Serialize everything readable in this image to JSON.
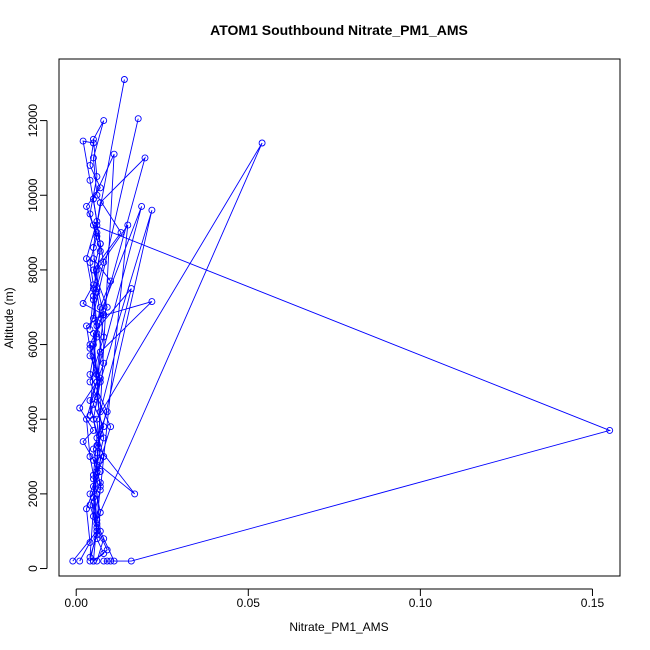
{
  "chart_data": {
    "type": "line",
    "title": "ATOM1 Southbound Nitrate_PM1_AMS",
    "xlabel": "Nitrate_PM1_AMS",
    "ylabel": "Altitude (m)",
    "xlim": [
      -0.005,
      0.158
    ],
    "ylim": [
      -200,
      13650
    ],
    "x_ticks": [
      0.0,
      0.05,
      0.1,
      0.15
    ],
    "x_tick_labels": [
      "0.00",
      "0.05",
      "0.10",
      "0.15"
    ],
    "y_ticks": [
      0,
      2000,
      4000,
      6000,
      8000,
      10000,
      12000
    ],
    "y_tick_labels": [
      "0",
      "2000",
      "4000",
      "6000",
      "8000",
      "10000",
      "12000"
    ],
    "marker": "open-circle",
    "series_color": "#0000ff",
    "series": [
      {
        "x": [
          -0.001,
          0.006,
          0.004,
          0.008,
          0.005,
          0.007,
          0.004,
          0.009,
          0.005,
          0.013,
          0.006,
          0.005,
          0.008,
          0.005,
          0.006,
          0.004,
          0.007,
          0.005,
          0.006,
          0.008,
          0.004,
          0.006,
          0.005,
          0.007,
          0.006,
          0.008,
          0.005,
          0.006,
          0.007,
          0.005,
          0.009,
          0.004,
          0.006,
          0.005,
          0.008,
          0.006,
          0.014
        ],
        "y": [
          200,
          1000,
          2000,
          3000,
          4000,
          5000,
          6000,
          7000,
          8000,
          9000,
          10000,
          11000,
          12000,
          11500,
          10500,
          9500,
          8500,
          7500,
          6500,
          5500,
          4500,
          3500,
          2500,
          1500,
          800,
          400,
          200,
          1200,
          2200,
          3200,
          4200,
          5200,
          6200,
          7200,
          8200,
          9200,
          13100
        ]
      },
      {
        "x": [
          0.001,
          0.004,
          0.003,
          0.007,
          0.002,
          0.005,
          0.001,
          0.006,
          0.004,
          0.003,
          0.008,
          0.002,
          0.005,
          0.004,
          0.006,
          0.003,
          0.007,
          0.004,
          0.005,
          0.002,
          0.004,
          0.006,
          0.003,
          0.005,
          0.004,
          0.018
        ],
        "y": [
          200,
          700,
          1600,
          2600,
          3400,
          3700,
          4300,
          5000,
          5900,
          6500,
          6800,
          7100,
          7600,
          8200,
          8900,
          9700,
          10200,
          10800,
          11400,
          11450,
          10400,
          9300,
          8300,
          7300,
          6400,
          12050
        ]
      },
      {
        "x": [
          0.005,
          0.009,
          0.006,
          0.004,
          0.007,
          0.005,
          0.017,
          0.006,
          0.008,
          0.005,
          0.007,
          0.004,
          0.006,
          0.02,
          0.007,
          0.005,
          0.006,
          0.008,
          0.004,
          0.01,
          0.006,
          0.011,
          0.005,
          0.007,
          0.006
        ],
        "y": [
          200,
          500,
          1100,
          1700,
          2300,
          2900,
          2000,
          3300,
          3800,
          4400,
          5100,
          5700,
          6300,
          11000,
          9800,
          8600,
          7400,
          6200,
          5000,
          3800,
          2600,
          11100,
          9900,
          8700,
          7500
        ]
      },
      {
        "x": [
          0.006,
          0.008,
          0.005,
          0.007,
          0.015,
          0.006,
          0.005,
          0.022,
          0.007,
          0.006,
          0.008,
          0.005,
          0.006,
          0.054,
          0.006,
          0.007,
          0.005,
          0.006,
          0.004,
          0.007,
          0.016,
          0.005,
          0.006,
          0.019,
          0.006,
          0.004,
          0.022,
          0.006
        ],
        "y": [
          200,
          800,
          1400,
          2100,
          9200,
          8000,
          6700,
          7150,
          5800,
          4600,
          3500,
          2400,
          1300,
          11400,
          4000,
          2900,
          1900,
          900,
          300,
          4200,
          7500,
          6300,
          5200,
          9700,
          6600,
          4100,
          9600,
          3100
        ]
      },
      {
        "x": [
          0.004,
          0.006,
          0.005,
          0.007,
          0.006,
          0.008,
          0.005,
          0.007,
          0.006,
          0.005,
          0.155,
          0.016,
          0.008,
          0.009,
          0.01,
          0.011,
          0.007,
          0.006,
          0.004,
          0.003,
          0.006,
          0.005,
          0.007,
          0.01,
          0.005
        ],
        "y": [
          200,
          1000,
          2200,
          3600,
          5200,
          6800,
          8000,
          8700,
          9000,
          9200,
          3700,
          200,
          200,
          200,
          200,
          200,
          1000,
          2000,
          3000,
          4000,
          5000,
          6000,
          7000,
          7700,
          8300
        ]
      }
    ]
  }
}
